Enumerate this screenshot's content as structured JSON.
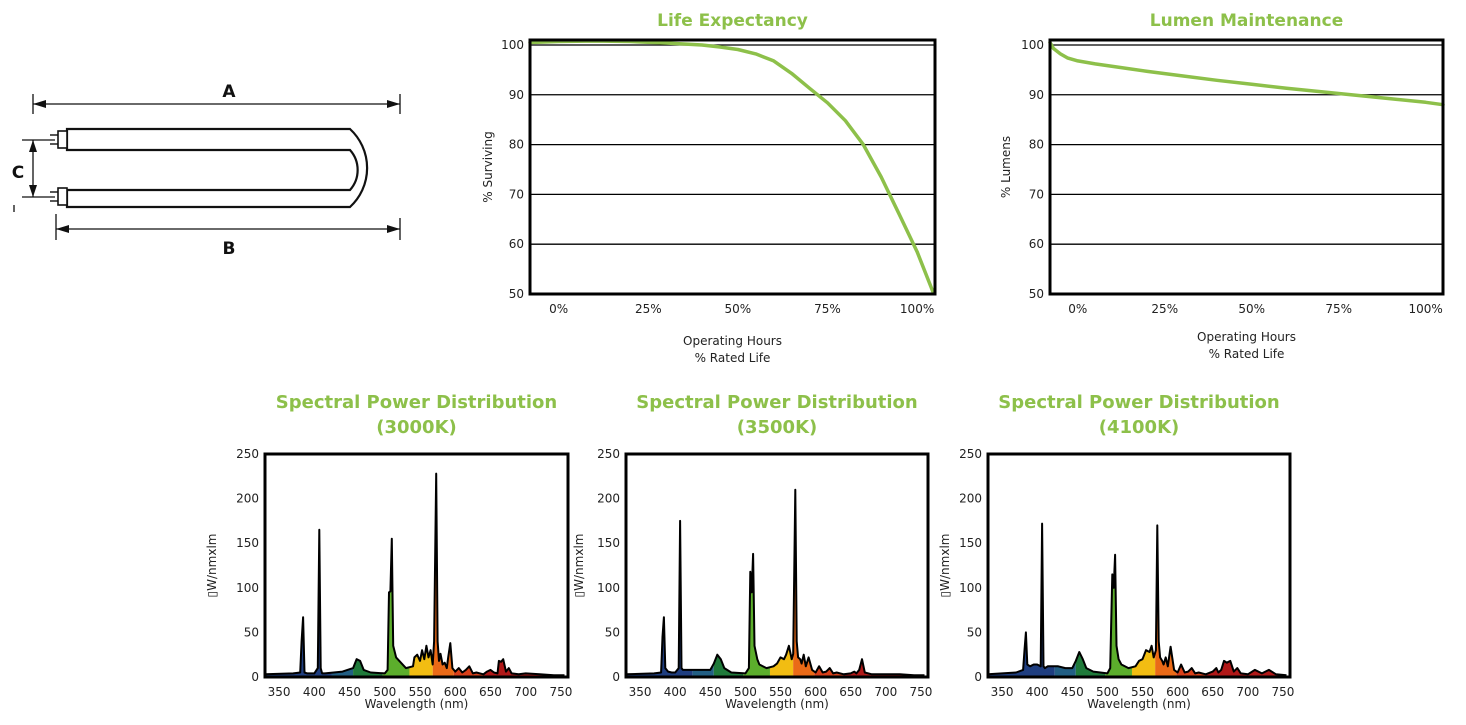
{
  "colors": {
    "accent": "#8dc04a",
    "frame": "#000000"
  },
  "diagram": {
    "labels": {
      "a": "A",
      "b": "B",
      "c": "C"
    }
  },
  "chart_data": [
    {
      "type": "line",
      "title": "Life Expectancy",
      "xlabel": [
        "Operating Hours",
        "% Rated Life"
      ],
      "ylabel": "% Surviving",
      "x_ticks": [
        "0%",
        "25%",
        "50%",
        "75%",
        "100%"
      ],
      "y_ticks": [
        "50",
        "60",
        "70",
        "80",
        "90",
        "100"
      ],
      "xlim": [
        -8,
        105
      ],
      "ylim": [
        50,
        101
      ],
      "grid": true,
      "series": [
        {
          "color": "#8dc04a",
          "x": [
            -8,
            0,
            10,
            20,
            30,
            40,
            45,
            50,
            55,
            60,
            65,
            70,
            75,
            80,
            85,
            90,
            95,
            100,
            104.5
          ],
          "y": [
            100.5,
            100.7,
            100.8,
            100.7,
            100.4,
            100.0,
            99.6,
            99.1,
            98.2,
            96.8,
            94.3,
            91.3,
            88.4,
            84.8,
            80.0,
            73.5,
            66.0,
            58.5,
            50.3
          ]
        }
      ]
    },
    {
      "type": "line",
      "title": "Lumen Maintenance",
      "xlabel": [
        "Operating Hours",
        "% Rated Life"
      ],
      "ylabel": "% Lumens",
      "x_ticks": [
        "0%",
        "25%",
        "50%",
        "75%",
        "100%"
      ],
      "y_ticks": [
        "50",
        "60",
        "70",
        "80",
        "90",
        "100"
      ],
      "xlim": [
        -8,
        105
      ],
      "ylim": [
        50,
        101
      ],
      "grid": true,
      "series": [
        {
          "color": "#8dc04a",
          "x": [
            -8,
            -7,
            -5,
            -3,
            0,
            5,
            10,
            20,
            30,
            40,
            50,
            60,
            70,
            80,
            90,
            100,
            105
          ],
          "y": [
            100.5,
            99.3,
            98.2,
            97.4,
            96.8,
            96.2,
            95.7,
            94.7,
            93.8,
            92.9,
            92.1,
            91.3,
            90.6,
            89.9,
            89.2,
            88.5,
            88.0
          ]
        }
      ]
    },
    {
      "type": "area",
      "title": [
        "Spectral Power Distribution",
        "(3000K)"
      ],
      "xlabel": "Wavelength (nm)",
      "ylabel": "▯W/nmxlm",
      "x_ticks": [
        "350",
        "400",
        "450",
        "500",
        "550",
        "600",
        "650",
        "700",
        "750"
      ],
      "y_ticks": [
        "0",
        "50",
        "100",
        "150",
        "200",
        "250"
      ],
      "xlim": [
        330,
        760
      ],
      "ylim": [
        0,
        250
      ],
      "grid": false,
      "series": [
        {
          "color": "#000000",
          "x": [
            330,
            370,
            380,
            382,
            384,
            386,
            390,
            400,
            405,
            407,
            409,
            411,
            415,
            440,
            455,
            460,
            465,
            470,
            480,
            500,
            504,
            506,
            508,
            510,
            512,
            516,
            530,
            540,
            542,
            546,
            550,
            553,
            556,
            559,
            562,
            565,
            568,
            570,
            573,
            575,
            577,
            579,
            582,
            585,
            588,
            590,
            593,
            596,
            600,
            605,
            610,
            615,
            620,
            625,
            630,
            640,
            645,
            650,
            655,
            660,
            662,
            665,
            668,
            672,
            676,
            680,
            690,
            700,
            720,
            740,
            755
          ],
          "y": [
            3,
            4,
            5,
            40,
            67,
            5,
            4,
            4,
            10,
            165,
            10,
            4,
            4,
            6,
            10,
            20,
            18,
            8,
            5,
            4,
            8,
            95,
            96,
            155,
            35,
            22,
            10,
            12,
            22,
            25,
            18,
            30,
            20,
            35,
            22,
            30,
            14,
            40,
            228,
            40,
            18,
            26,
            14,
            16,
            10,
            22,
            38,
            10,
            6,
            10,
            5,
            8,
            12,
            4,
            5,
            3,
            6,
            8,
            5,
            4,
            18,
            17,
            20,
            6,
            10,
            4,
            3,
            4,
            3,
            2,
            2
          ]
        }
      ]
    },
    {
      "type": "area",
      "title": [
        "Spectral Power Distribution",
        "(3500K)"
      ],
      "xlabel": "Wavelength (nm)",
      "ylabel": "▯W/nmxlm",
      "x_ticks": [
        "350",
        "400",
        "450",
        "500",
        "550",
        "600",
        "650",
        "700",
        "750"
      ],
      "y_ticks": [
        "0",
        "50",
        "100",
        "150",
        "200",
        "250"
      ],
      "xlim": [
        330,
        760
      ],
      "ylim": [
        0,
        250
      ],
      "grid": false,
      "series": [
        {
          "color": "#000000",
          "x": [
            330,
            370,
            380,
            382,
            384,
            386,
            390,
            395,
            400,
            403,
            405,
            407,
            409,
            411,
            415,
            420,
            430,
            440,
            450,
            455,
            460,
            465,
            470,
            480,
            500,
            505,
            507,
            509,
            511,
            513,
            517,
            520,
            530,
            540,
            545,
            550,
            555,
            558,
            562,
            566,
            568,
            571,
            573,
            575,
            578,
            580,
            583,
            586,
            590,
            595,
            600,
            605,
            610,
            615,
            620,
            625,
            630,
            640,
            650,
            655,
            658,
            662,
            666,
            670,
            680,
            700,
            720,
            740,
            755
          ],
          "y": [
            3,
            4,
            5,
            45,
            67,
            10,
            6,
            5,
            5,
            8,
            10,
            175,
            10,
            8,
            8,
            8,
            8,
            8,
            8,
            15,
            25,
            20,
            10,
            5,
            4,
            10,
            118,
            95,
            138,
            35,
            20,
            14,
            10,
            12,
            15,
            22,
            20,
            25,
            35,
            20,
            26,
            210,
            40,
            22,
            20,
            15,
            25,
            12,
            22,
            8,
            5,
            12,
            5,
            6,
            10,
            4,
            5,
            3,
            4,
            6,
            4,
            8,
            20,
            5,
            3,
            3,
            3,
            2,
            2
          ]
        }
      ]
    },
    {
      "type": "area",
      "title": [
        "Spectral Power Distribution",
        "(4100K)"
      ],
      "xlabel": "Wavelength (nm)",
      "ylabel": "▯W/nmxlm",
      "x_ticks": [
        "350",
        "400",
        "450",
        "500",
        "550",
        "600",
        "650",
        "700",
        "750"
      ],
      "y_ticks": [
        "0",
        "50",
        "100",
        "150",
        "200",
        "250"
      ],
      "xlim": [
        330,
        760
      ],
      "ylim": [
        0,
        250
      ],
      "grid": false,
      "series": [
        {
          "color": "#000000",
          "x": [
            330,
            370,
            380,
            382,
            384,
            386,
            390,
            395,
            400,
            405,
            407,
            409,
            411,
            415,
            420,
            430,
            440,
            450,
            455,
            460,
            465,
            470,
            480,
            500,
            504,
            507,
            509,
            511,
            513,
            516,
            520,
            530,
            540,
            545,
            550,
            555,
            560,
            563,
            566,
            569,
            571,
            573,
            575,
            578,
            580,
            583,
            586,
            590,
            595,
            600,
            605,
            610,
            615,
            620,
            625,
            630,
            640,
            650,
            655,
            658,
            662,
            666,
            670,
            675,
            680,
            685,
            690,
            700,
            710,
            720,
            730,
            740,
            755
          ],
          "y": [
            3,
            5,
            8,
            30,
            50,
            14,
            12,
            14,
            14,
            12,
            172,
            12,
            10,
            12,
            12,
            12,
            10,
            10,
            18,
            28,
            20,
            10,
            6,
            4,
            10,
            115,
            100,
            137,
            35,
            20,
            14,
            10,
            12,
            18,
            20,
            30,
            28,
            35,
            22,
            30,
            170,
            40,
            22,
            18,
            14,
            22,
            12,
            34,
            8,
            5,
            14,
            5,
            6,
            10,
            4,
            5,
            3,
            6,
            10,
            5,
            8,
            18,
            16,
            18,
            6,
            10,
            4,
            3,
            8,
            4,
            8,
            3,
            2
          ]
        }
      ]
    }
  ]
}
